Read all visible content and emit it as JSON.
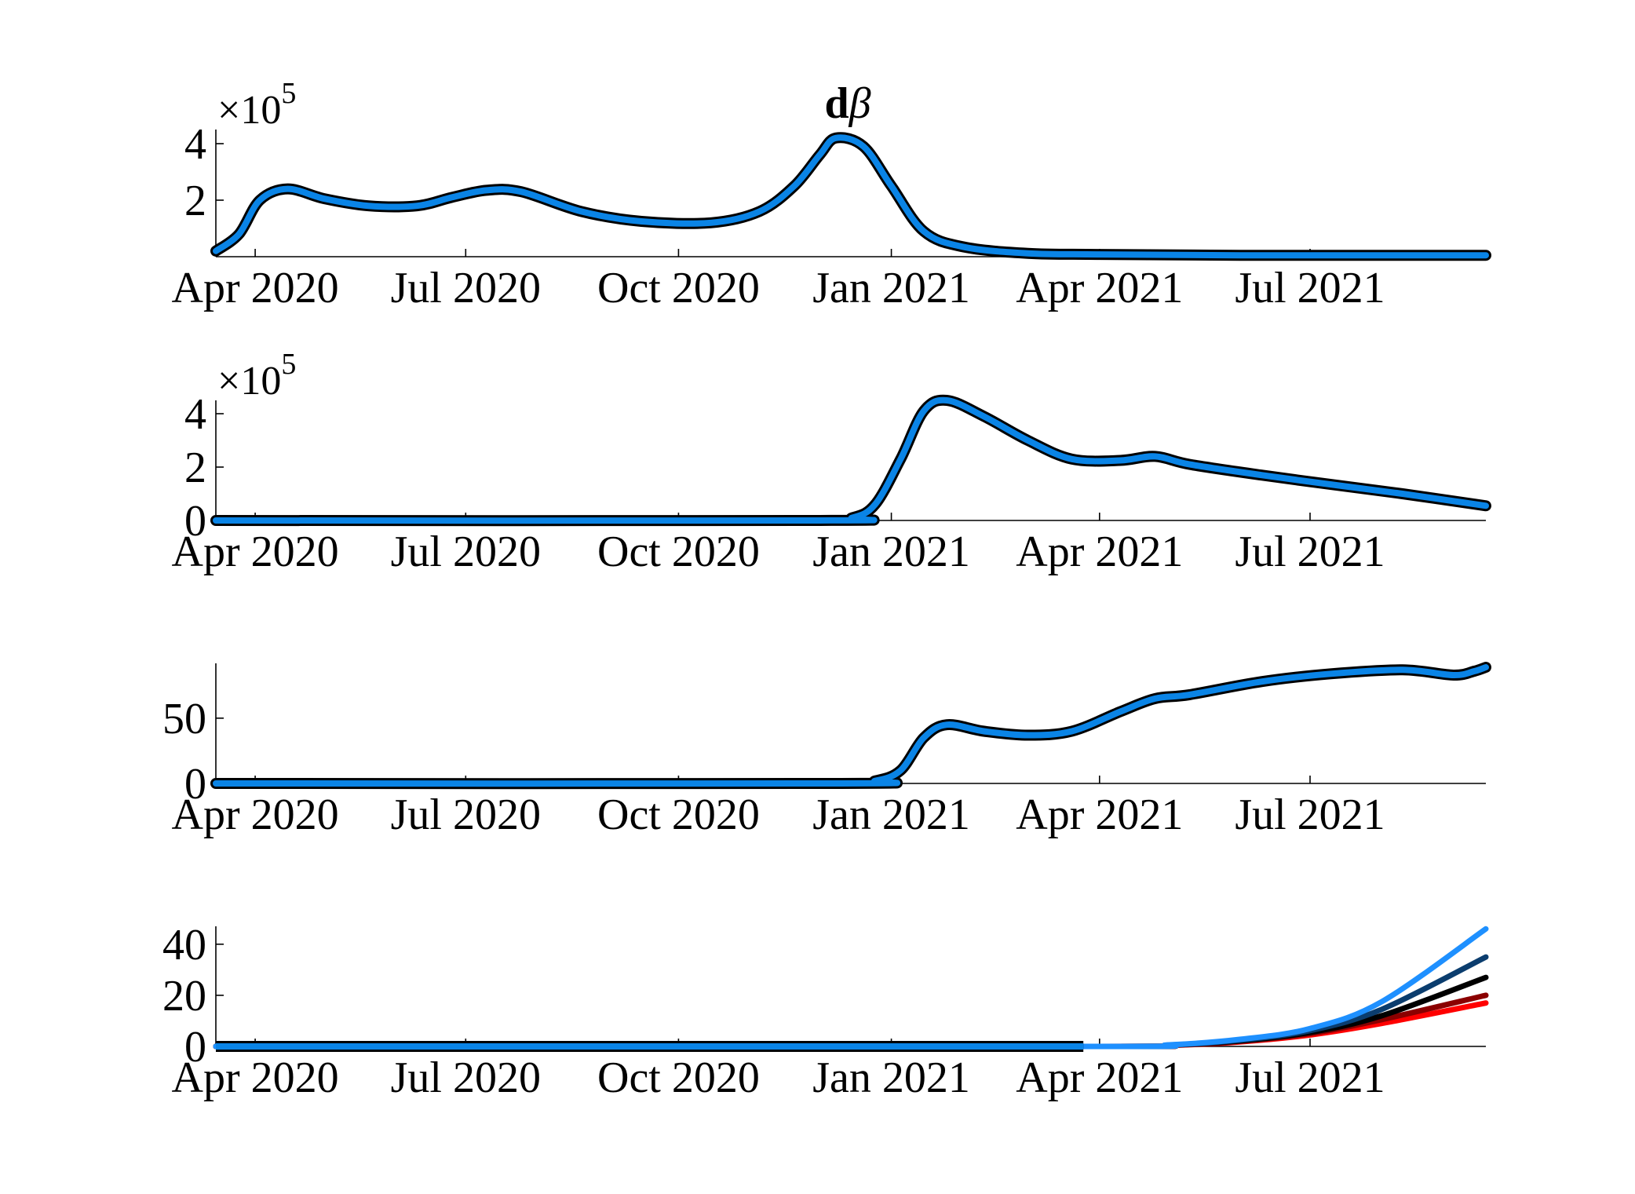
{
  "figure_title": {
    "bold": "d",
    "italic": "β"
  },
  "chart_data": [
    {
      "type": "line",
      "title": "dβ",
      "xlabel": "",
      "ylabel": "",
      "x_ticks": [
        "Apr 2020",
        "Jul 2020",
        "Oct 2020",
        "Jan 2021",
        "Apr 2021",
        "Jul 2021"
      ],
      "x_tick_dates": [
        "2020-04-01",
        "2020-07-01",
        "2020-10-01",
        "2021-01-01",
        "2021-04-01",
        "2021-07-01"
      ],
      "xlim": [
        "2020-03-15",
        "2021-09-15"
      ],
      "y_multiplier": {
        "base": "×10",
        "exponent": "5"
      },
      "y_ticks": [
        "2",
        "4"
      ],
      "y_tick_values": [
        2,
        4
      ],
      "ylim": [
        0,
        4.5
      ],
      "series": [
        {
          "color": "#0a84e6",
          "x": [
            "2020-03-15",
            "2020-03-25",
            "2020-04-03",
            "2020-04-15",
            "2020-05-01",
            "2020-05-20",
            "2020-06-10",
            "2020-06-25",
            "2020-07-10",
            "2020-07-25",
            "2020-08-20",
            "2020-09-15",
            "2020-10-15",
            "2020-11-05",
            "2020-11-20",
            "2020-12-01",
            "2020-12-08",
            "2020-12-20",
            "2021-01-01",
            "2021-01-15",
            "2021-02-01",
            "2021-03-01",
            "2021-04-01",
            "2021-06-01",
            "2021-09-15"
          ],
          "values": [
            0.2,
            0.8,
            2.0,
            2.4,
            2.05,
            1.8,
            1.8,
            2.1,
            2.35,
            2.3,
            1.6,
            1.25,
            1.2,
            1.6,
            2.5,
            3.6,
            4.2,
            3.9,
            2.5,
            0.9,
            0.35,
            0.12,
            0.08,
            0.05,
            0.05
          ]
        }
      ]
    },
    {
      "type": "line",
      "title": "",
      "xlabel": "",
      "ylabel": "",
      "x_ticks": [
        "Apr 2020",
        "Jul 2020",
        "Oct 2020",
        "Jan 2021",
        "Apr 2021",
        "Jul 2021"
      ],
      "x_tick_dates": [
        "2020-04-01",
        "2020-07-01",
        "2020-10-01",
        "2021-01-01",
        "2021-04-01",
        "2021-07-01"
      ],
      "xlim": [
        "2020-03-15",
        "2021-09-15"
      ],
      "y_multiplier": {
        "base": "×10",
        "exponent": "5"
      },
      "y_ticks": [
        "0",
        "2",
        "4"
      ],
      "y_tick_values": [
        0,
        2,
        4
      ],
      "ylim": [
        0,
        4.5
      ],
      "series": [
        {
          "color": "#0a84e6",
          "x": [
            "2020-03-15",
            "2020-12-01",
            "2020-12-15",
            "2020-12-25",
            "2021-01-05",
            "2021-01-15",
            "2021-01-25",
            "2021-02-10",
            "2021-03-01",
            "2021-03-20",
            "2021-04-10",
            "2021-04-25",
            "2021-05-10",
            "2021-06-10",
            "2021-07-10",
            "2021-08-10",
            "2021-09-15"
          ],
          "values": [
            0,
            0,
            0.1,
            0.6,
            2.3,
            4.1,
            4.5,
            3.9,
            3.0,
            2.3,
            2.25,
            2.4,
            2.1,
            1.7,
            1.35,
            1.0,
            0.55
          ]
        }
      ]
    },
    {
      "type": "line",
      "title": "",
      "xlabel": "",
      "ylabel": "",
      "x_ticks": [
        "Apr 2020",
        "Jul 2020",
        "Oct 2020",
        "Jan 2021",
        "Apr 2021",
        "Jul 2021"
      ],
      "x_tick_dates": [
        "2020-04-01",
        "2020-07-01",
        "2020-10-01",
        "2021-01-01",
        "2021-04-01",
        "2021-07-01"
      ],
      "xlim": [
        "2020-03-15",
        "2021-09-15"
      ],
      "y_ticks": [
        "0",
        "50"
      ],
      "y_tick_values": [
        0,
        50
      ],
      "ylim": [
        0,
        92
      ],
      "series": [
        {
          "color": "#0a84e6",
          "x": [
            "2020-03-15",
            "2020-12-10",
            "2020-12-25",
            "2021-01-05",
            "2021-01-15",
            "2021-01-25",
            "2021-02-10",
            "2021-03-01",
            "2021-03-20",
            "2021-04-10",
            "2021-04-25",
            "2021-05-10",
            "2021-06-10",
            "2021-07-10",
            "2021-08-10",
            "2021-09-01",
            "2021-09-10",
            "2021-09-15"
          ],
          "values": [
            0,
            0,
            2,
            10,
            35,
            45,
            40,
            37,
            40,
            55,
            65,
            68,
            78,
            84,
            87,
            83,
            86,
            89
          ]
        }
      ]
    },
    {
      "type": "line",
      "title": "",
      "xlabel": "",
      "ylabel": "",
      "x_ticks": [
        "Apr 2020",
        "Jul 2020",
        "Oct 2020",
        "Jan 2021",
        "Apr 2021",
        "Jul 2021"
      ],
      "x_tick_dates": [
        "2020-04-01",
        "2020-07-01",
        "2020-10-01",
        "2021-01-01",
        "2021-04-01",
        "2021-07-01"
      ],
      "xlim": [
        "2020-03-15",
        "2021-09-15"
      ],
      "y_ticks": [
        "0",
        "20",
        "40"
      ],
      "y_tick_values": [
        0,
        20,
        40
      ],
      "ylim": [
        0,
        47
      ],
      "series": [
        {
          "color": "#ff0000",
          "x": [
            "2020-03-15",
            "2021-03-25",
            "2021-05-01",
            "2021-06-01",
            "2021-07-01",
            "2021-08-01",
            "2021-09-15"
          ],
          "values": [
            0,
            0,
            0.4,
            1.8,
            4.5,
            9,
            17
          ]
        },
        {
          "color": "#8b0000",
          "x": [
            "2020-03-15",
            "2021-03-25",
            "2021-05-01",
            "2021-06-01",
            "2021-07-01",
            "2021-08-01",
            "2021-09-15"
          ],
          "values": [
            0,
            0,
            0.45,
            2.0,
            5.0,
            10.5,
            20
          ]
        },
        {
          "color": "#000000",
          "x": [
            "2020-03-15",
            "2021-03-25",
            "2021-05-01",
            "2021-06-01",
            "2021-07-01",
            "2021-08-01",
            "2021-09-15"
          ],
          "values": [
            0,
            0,
            0.5,
            2.2,
            5.5,
            12,
            27
          ]
        },
        {
          "color": "#0b3d6e",
          "x": [
            "2020-03-15",
            "2021-03-25",
            "2021-05-01",
            "2021-06-01",
            "2021-07-01",
            "2021-08-01",
            "2021-09-15"
          ],
          "values": [
            0,
            0,
            0.55,
            2.5,
            6.2,
            14.5,
            35
          ]
        },
        {
          "color": "#1e90ff",
          "x": [
            "2020-03-15",
            "2021-03-25",
            "2021-05-01",
            "2021-06-01",
            "2021-07-01",
            "2021-08-01",
            "2021-09-15"
          ],
          "values": [
            0,
            0,
            0.6,
            2.8,
            7.0,
            17.5,
            46
          ]
        }
      ]
    }
  ]
}
